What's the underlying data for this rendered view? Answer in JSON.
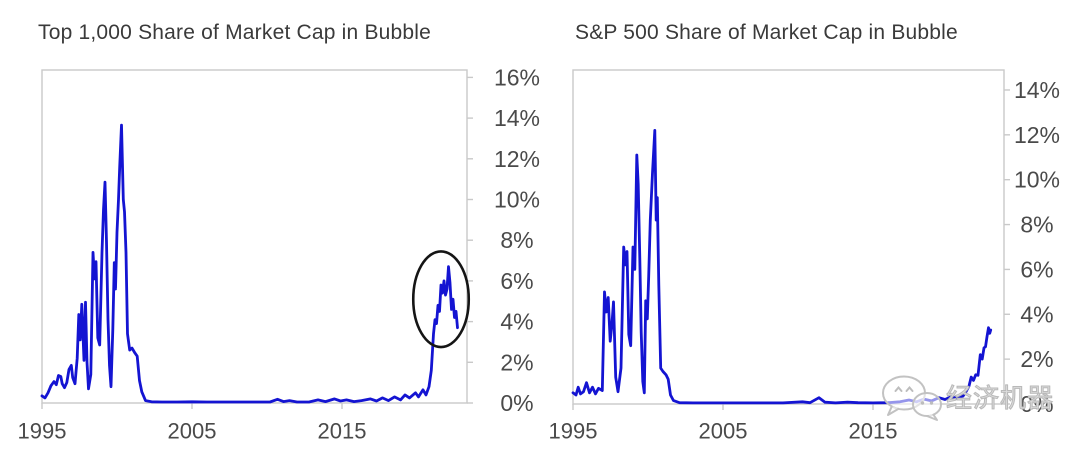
{
  "figure": {
    "background": "#ffffff"
  },
  "colors": {
    "series_line": "#1414d2",
    "frame": "#c9c9c9",
    "tick_label": "#4a4a4a",
    "title": "#3a3a3a",
    "annotation": "#151515",
    "watermark": "#c4c4c4"
  },
  "watermark": {
    "icon": "wechat-icon",
    "text": "经济机器"
  },
  "chart_data": [
    {
      "type": "line",
      "title": "Top 1,000 Share of Market Cap in Bubble",
      "legend": "none",
      "grid": false,
      "y_axis_side": "right",
      "xlim": [
        1995,
        2023.3
      ],
      "ylim": [
        0,
        16.4
      ],
      "x_tick_years": [
        1995,
        2005,
        2015
      ],
      "x_tick_labels": [
        "1995",
        "2005",
        "2015"
      ],
      "y_tick_values": [
        0,
        2,
        4,
        6,
        8,
        10,
        12,
        14,
        16
      ],
      "y_tick_labels": [
        "0%",
        "2%",
        "4%",
        "6%",
        "8%",
        "10%",
        "12%",
        "14%",
        "16%"
      ],
      "annotation": {
        "type": "ellipse",
        "center_year": 2021.6,
        "center_pct": 5.1,
        "radius_years": 1.85,
        "radius_pct": 2.35,
        "meaning": "circles the 2020-2022 spike"
      },
      "points": [
        [
          1995.0,
          0.35
        ],
        [
          1995.2,
          0.25
        ],
        [
          1995.4,
          0.5
        ],
        [
          1995.6,
          0.85
        ],
        [
          1995.8,
          1.05
        ],
        [
          1995.95,
          0.9
        ],
        [
          1996.1,
          1.35
        ],
        [
          1996.25,
          1.3
        ],
        [
          1996.35,
          0.95
        ],
        [
          1996.5,
          0.75
        ],
        [
          1996.65,
          1.0
        ],
        [
          1996.8,
          1.65
        ],
        [
          1996.95,
          1.85
        ],
        [
          1997.05,
          1.25
        ],
        [
          1997.2,
          0.95
        ],
        [
          1997.35,
          2.2
        ],
        [
          1997.45,
          4.35
        ],
        [
          1997.55,
          3.1
        ],
        [
          1997.65,
          4.85
        ],
        [
          1997.8,
          2.1
        ],
        [
          1997.9,
          4.95
        ],
        [
          1998.0,
          2.0
        ],
        [
          1998.1,
          0.7
        ],
        [
          1998.25,
          1.4
        ],
        [
          1998.4,
          7.4
        ],
        [
          1998.5,
          6.1
        ],
        [
          1998.6,
          6.95
        ],
        [
          1998.72,
          3.2
        ],
        [
          1998.85,
          2.85
        ],
        [
          1999.0,
          7.4
        ],
        [
          1999.1,
          9.5
        ],
        [
          1999.2,
          10.85
        ],
        [
          1999.3,
          7.9
        ],
        [
          1999.4,
          4.1
        ],
        [
          1999.5,
          1.85
        ],
        [
          1999.6,
          0.8
        ],
        [
          1999.72,
          3.6
        ],
        [
          1999.82,
          6.9
        ],
        [
          1999.9,
          5.6
        ],
        [
          2000.0,
          8.4
        ],
        [
          2000.1,
          10.0
        ],
        [
          2000.18,
          11.6
        ],
        [
          2000.3,
          13.65
        ],
        [
          2000.42,
          10.0
        ],
        [
          2000.5,
          9.4
        ],
        [
          2000.6,
          7.4
        ],
        [
          2000.7,
          3.4
        ],
        [
          2000.85,
          2.6
        ],
        [
          2001.0,
          2.7
        ],
        [
          2001.2,
          2.45
        ],
        [
          2001.35,
          2.3
        ],
        [
          2001.5,
          1.1
        ],
        [
          2001.65,
          0.55
        ],
        [
          2001.9,
          0.12
        ],
        [
          2002.3,
          0.06
        ],
        [
          2003,
          0.05
        ],
        [
          2004,
          0.05
        ],
        [
          2005,
          0.06
        ],
        [
          2006,
          0.05
        ],
        [
          2007,
          0.05
        ],
        [
          2008,
          0.05
        ],
        [
          2009,
          0.05
        ],
        [
          2010.2,
          0.05
        ],
        [
          2010.7,
          0.18
        ],
        [
          2011.1,
          0.07
        ],
        [
          2011.5,
          0.12
        ],
        [
          2012,
          0.05
        ],
        [
          2012.8,
          0.05
        ],
        [
          2013.4,
          0.15
        ],
        [
          2013.9,
          0.07
        ],
        [
          2014.5,
          0.2
        ],
        [
          2014.9,
          0.1
        ],
        [
          2015.3,
          0.15
        ],
        [
          2015.8,
          0.07
        ],
        [
          2016.3,
          0.12
        ],
        [
          2016.9,
          0.2
        ],
        [
          2017.3,
          0.1
        ],
        [
          2017.7,
          0.25
        ],
        [
          2018.1,
          0.12
        ],
        [
          2018.5,
          0.3
        ],
        [
          2018.9,
          0.15
        ],
        [
          2019.2,
          0.4
        ],
        [
          2019.5,
          0.25
        ],
        [
          2019.9,
          0.5
        ],
        [
          2020.1,
          0.3
        ],
        [
          2020.4,
          0.65
        ],
        [
          2020.6,
          0.4
        ],
        [
          2020.8,
          0.8
        ],
        [
          2020.95,
          1.6
        ],
        [
          2021.1,
          3.4
        ],
        [
          2021.2,
          4.1
        ],
        [
          2021.3,
          3.9
        ],
        [
          2021.4,
          4.8
        ],
        [
          2021.5,
          4.5
        ],
        [
          2021.6,
          5.8
        ],
        [
          2021.7,
          5.4
        ],
        [
          2021.8,
          6.0
        ],
        [
          2021.9,
          5.3
        ],
        [
          2022.0,
          5.6
        ],
        [
          2022.1,
          6.7
        ],
        [
          2022.2,
          5.9
        ],
        [
          2022.3,
          4.6
        ],
        [
          2022.4,
          5.1
        ],
        [
          2022.5,
          4.2
        ],
        [
          2022.6,
          4.5
        ],
        [
          2022.7,
          3.7
        ]
      ]
    },
    {
      "type": "line",
      "title": "S&P 500 Share of Market Cap in Bubble",
      "legend": "none",
      "grid": false,
      "y_axis_side": "right",
      "xlim": [
        1995,
        2023.7
      ],
      "ylim": [
        0,
        14.9
      ],
      "x_tick_years": [
        1995,
        2005,
        2015
      ],
      "x_tick_labels": [
        "1995",
        "2005",
        "2015"
      ],
      "y_tick_values": [
        0,
        2,
        4,
        6,
        8,
        10,
        12,
        14
      ],
      "y_tick_labels": [
        "0%",
        "2%",
        "4%",
        "6%",
        "8%",
        "10%",
        "12%",
        "14%"
      ],
      "annotation": null,
      "points": [
        [
          1995.0,
          0.5
        ],
        [
          1995.2,
          0.4
        ],
        [
          1995.35,
          0.75
        ],
        [
          1995.5,
          0.45
        ],
        [
          1995.7,
          0.55
        ],
        [
          1995.9,
          0.95
        ],
        [
          1996.1,
          0.5
        ],
        [
          1996.3,
          0.75
        ],
        [
          1996.5,
          0.45
        ],
        [
          1996.7,
          0.7
        ],
        [
          1996.95,
          0.6
        ],
        [
          1997.1,
          5.0
        ],
        [
          1997.22,
          4.1
        ],
        [
          1997.35,
          4.75
        ],
        [
          1997.48,
          2.8
        ],
        [
          1997.6,
          3.6
        ],
        [
          1997.7,
          4.55
        ],
        [
          1997.85,
          1.2
        ],
        [
          1998.0,
          0.55
        ],
        [
          1998.2,
          1.6
        ],
        [
          1998.38,
          7.0
        ],
        [
          1998.5,
          6.2
        ],
        [
          1998.6,
          6.8
        ],
        [
          1998.72,
          3.1
        ],
        [
          1998.85,
          2.6
        ],
        [
          1999.0,
          7.0
        ],
        [
          1999.12,
          6.0
        ],
        [
          1999.25,
          11.1
        ],
        [
          1999.35,
          9.8
        ],
        [
          1999.45,
          6.5
        ],
        [
          1999.55,
          3.2
        ],
        [
          1999.65,
          1.0
        ],
        [
          1999.75,
          0.5
        ],
        [
          1999.85,
          4.6
        ],
        [
          1999.95,
          3.8
        ],
        [
          2000.05,
          5.7
        ],
        [
          2000.15,
          8.2
        ],
        [
          2000.3,
          10.3
        ],
        [
          2000.45,
          12.2
        ],
        [
          2000.55,
          8.2
        ],
        [
          2000.62,
          9.2
        ],
        [
          2000.72,
          5.3
        ],
        [
          2000.85,
          1.6
        ],
        [
          2001.0,
          1.45
        ],
        [
          2001.2,
          1.3
        ],
        [
          2001.35,
          1.1
        ],
        [
          2001.5,
          0.4
        ],
        [
          2001.7,
          0.15
        ],
        [
          2002.1,
          0.06
        ],
        [
          2003,
          0.05
        ],
        [
          2004,
          0.05
        ],
        [
          2005,
          0.05
        ],
        [
          2006,
          0.05
        ],
        [
          2007,
          0.05
        ],
        [
          2008,
          0.05
        ],
        [
          2009,
          0.05
        ],
        [
          2010.3,
          0.1
        ],
        [
          2010.8,
          0.06
        ],
        [
          2011.4,
          0.28
        ],
        [
          2011.8,
          0.08
        ],
        [
          2012.5,
          0.05
        ],
        [
          2013.3,
          0.08
        ],
        [
          2014,
          0.06
        ],
        [
          2015,
          0.05
        ],
        [
          2016,
          0.06
        ],
        [
          2016.8,
          0.1
        ],
        [
          2017.4,
          0.18
        ],
        [
          2017.9,
          0.1
        ],
        [
          2018.4,
          0.22
        ],
        [
          2018.9,
          0.14
        ],
        [
          2019.4,
          0.28
        ],
        [
          2019.8,
          0.2
        ],
        [
          2020.2,
          0.32
        ],
        [
          2020.6,
          0.26
        ],
        [
          2021.0,
          0.35
        ],
        [
          2021.2,
          0.55
        ],
        [
          2021.4,
          0.8
        ],
        [
          2021.55,
          1.2
        ],
        [
          2021.7,
          1.05
        ],
        [
          2021.85,
          1.3
        ],
        [
          2022.0,
          1.28
        ],
        [
          2022.15,
          2.2
        ],
        [
          2022.28,
          2.0
        ],
        [
          2022.4,
          2.5
        ],
        [
          2022.5,
          2.55
        ],
        [
          2022.6,
          3.0
        ],
        [
          2022.7,
          3.4
        ],
        [
          2022.78,
          3.15
        ],
        [
          2022.85,
          3.3
        ]
      ]
    }
  ]
}
